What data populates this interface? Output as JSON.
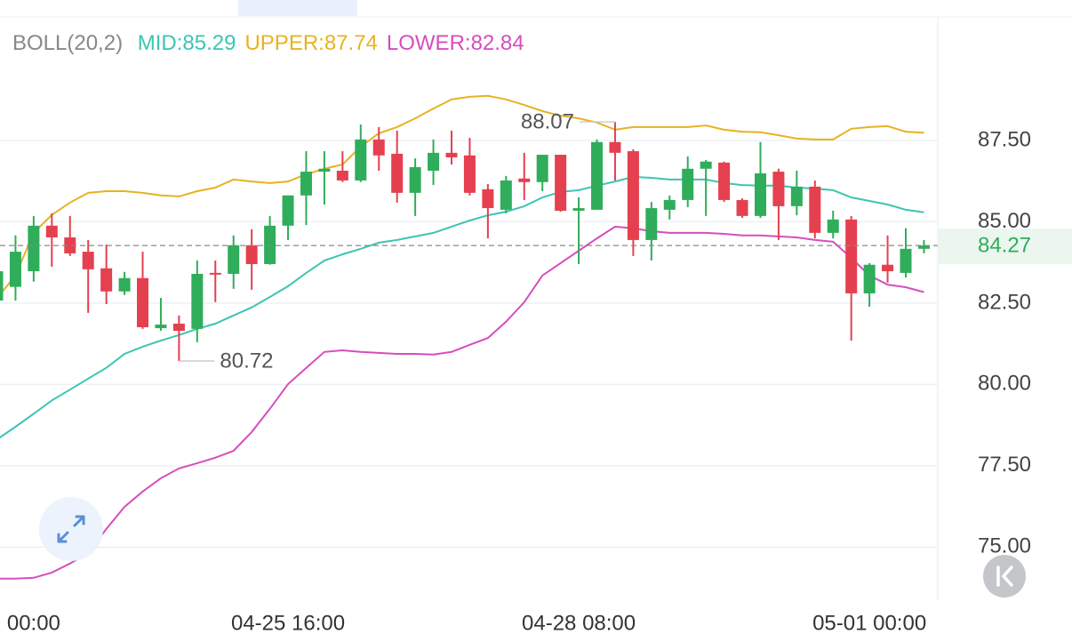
{
  "chart_data": {
    "type": "candlestick",
    "indicator_label": "BOLL(20,2)",
    "categories": [
      null,
      null,
      "00:00",
      null,
      null,
      null,
      null,
      null,
      null,
      null,
      null,
      null,
      null,
      null,
      null,
      null,
      "04-25 16:00",
      null,
      null,
      null,
      null,
      null,
      null,
      null,
      null,
      null,
      null,
      null,
      null,
      null,
      null,
      null,
      "04-28 08:00",
      null,
      null,
      null,
      null,
      null,
      null,
      null,
      null,
      null,
      null,
      null,
      null,
      null,
      null,
      null,
      "05-01 00:00",
      null,
      null,
      null
    ],
    "open": [
      82.58,
      83.0,
      83.48,
      84.88,
      84.52,
      84.08,
      83.57,
      82.86,
      83.27,
      81.73,
      81.87,
      81.71,
      83.43,
      83.4,
      84.28,
      83.7,
      84.88,
      85.81,
      86.54,
      86.57,
      86.27,
      87.53,
      87.09,
      85.89,
      86.57,
      87.12,
      87.04,
      86.0,
      85.37,
      86.33,
      86.22,
      87.06,
      85.34,
      85.37,
      87.45,
      87.17,
      84.44,
      85.37,
      85.67,
      86.63,
      86.82,
      85.67,
      85.18,
      86.54,
      85.48,
      86.08,
      84.66,
      85.07,
      82.8,
      83.68,
      83.43,
      84.17
    ],
    "high": [
      83.62,
      84.58,
      85.18,
      85.26,
      85.18,
      84.44,
      84.3,
      83.46,
      84.08,
      82.66,
      82.12,
      83.81,
      83.81,
      84.58,
      84.77,
      85.18,
      85.81,
      87.17,
      87.17,
      87.17,
      87.99,
      87.91,
      87.8,
      86.95,
      87.53,
      87.8,
      87.58,
      86.16,
      86.41,
      87.12,
      87.06,
      87.06,
      85.75,
      87.53,
      88.07,
      87.23,
      85.61,
      85.81,
      87.01,
      86.9,
      86.85,
      85.72,
      87.45,
      86.63,
      86.57,
      86.27,
      85.34,
      85.18,
      83.73,
      84.58,
      84.8,
      84.44
    ],
    "low": [
      82.58,
      82.58,
      83.16,
      83.62,
      83.95,
      82.2,
      82.47,
      82.75,
      81.71,
      81.65,
      80.72,
      81.3,
      82.53,
      82.94,
      82.91,
      83.68,
      84.44,
      84.9,
      85.53,
      86.22,
      86.22,
      86.57,
      85.59,
      85.18,
      86.13,
      86.76,
      85.81,
      84.49,
      85.26,
      85.67,
      85.94,
      85.31,
      83.7,
      85.37,
      86.27,
      83.95,
      83.81,
      85.07,
      85.45,
      85.18,
      85.61,
      85.12,
      85.12,
      84.44,
      85.2,
      84.49,
      84.49,
      81.35,
      82.39,
      83.13,
      83.29,
      84.03
    ],
    "close": [
      83.48,
      84.08,
      84.88,
      84.52,
      84.03,
      83.54,
      82.86,
      83.27,
      81.76,
      81.84,
      81.65,
      83.4,
      83.38,
      84.28,
      83.7,
      84.88,
      85.81,
      86.54,
      86.63,
      86.27,
      87.53,
      87.04,
      85.89,
      86.68,
      87.12,
      86.98,
      85.89,
      85.42,
      86.27,
      86.22,
      87.06,
      85.34,
      85.42,
      87.45,
      87.12,
      84.44,
      85.42,
      85.67,
      86.63,
      86.85,
      85.67,
      85.18,
      86.49,
      85.48,
      86.08,
      84.66,
      85.07,
      82.8,
      83.68,
      83.48,
      84.17,
      84.27
    ],
    "up_color": "#2fad5b",
    "down_color": "#e5404f",
    "series": [
      {
        "name": "MID:85.29",
        "color": "#3cc5b3",
        "values": [
          78.32,
          78.7,
          79.1,
          79.51,
          79.84,
          80.18,
          80.51,
          80.94,
          81.16,
          81.35,
          81.52,
          81.71,
          81.87,
          82.12,
          82.37,
          82.69,
          83.02,
          83.43,
          83.81,
          84.0,
          84.17,
          84.36,
          84.44,
          84.55,
          84.66,
          84.85,
          85.04,
          85.2,
          85.31,
          85.48,
          85.75,
          85.92,
          85.97,
          86.11,
          86.24,
          86.38,
          86.35,
          86.3,
          86.3,
          86.3,
          86.19,
          86.13,
          86.11,
          86.11,
          86.05,
          86.02,
          85.97,
          85.75,
          85.64,
          85.53,
          85.37,
          85.29
        ]
      },
      {
        "name": "UPPER:87.74",
        "color": "#e8b220",
        "values": [
          82.66,
          83.35,
          84.66,
          85.21,
          85.59,
          85.89,
          85.94,
          85.94,
          85.89,
          85.81,
          85.78,
          85.94,
          86.05,
          86.3,
          86.24,
          86.19,
          86.24,
          86.46,
          86.63,
          86.76,
          87.31,
          87.72,
          87.91,
          88.18,
          88.48,
          88.76,
          88.84,
          88.87,
          88.76,
          88.59,
          88.4,
          88.26,
          88.18,
          88.05,
          87.83,
          87.91,
          87.91,
          87.91,
          87.91,
          87.96,
          87.83,
          87.77,
          87.75,
          87.66,
          87.56,
          87.53,
          87.53,
          87.86,
          87.91,
          87.94,
          87.77,
          87.74
        ]
      },
      {
        "name": "LOWER:82.84",
        "color": "#d64dbe",
        "values": [
          74.03,
          74.03,
          74.06,
          74.22,
          74.5,
          74.82,
          75.56,
          76.24,
          76.71,
          77.12,
          77.42,
          77.58,
          77.75,
          77.96,
          78.54,
          79.25,
          80.01,
          80.51,
          81.0,
          81.05,
          81.0,
          80.97,
          80.94,
          80.94,
          80.92,
          81.0,
          81.22,
          81.43,
          81.93,
          82.53,
          83.35,
          83.73,
          84.11,
          84.49,
          84.85,
          84.8,
          84.71,
          84.66,
          84.66,
          84.66,
          84.63,
          84.58,
          84.58,
          84.55,
          84.52,
          84.44,
          84.39,
          83.89,
          83.35,
          83.07,
          82.99,
          82.84
        ]
      }
    ],
    "ylim": [
      73.37,
      91.27
    ],
    "yticks": [
      {
        "value": 75,
        "label": "75.00"
      },
      {
        "value": 77.5,
        "label": "77.50"
      },
      {
        "value": 80,
        "label": "80.00"
      },
      {
        "value": 82.5,
        "label": "82.50"
      },
      {
        "value": 85,
        "label": "85.00"
      },
      {
        "value": 87.5,
        "label": "87.50"
      }
    ],
    "grid": true
  }
}
